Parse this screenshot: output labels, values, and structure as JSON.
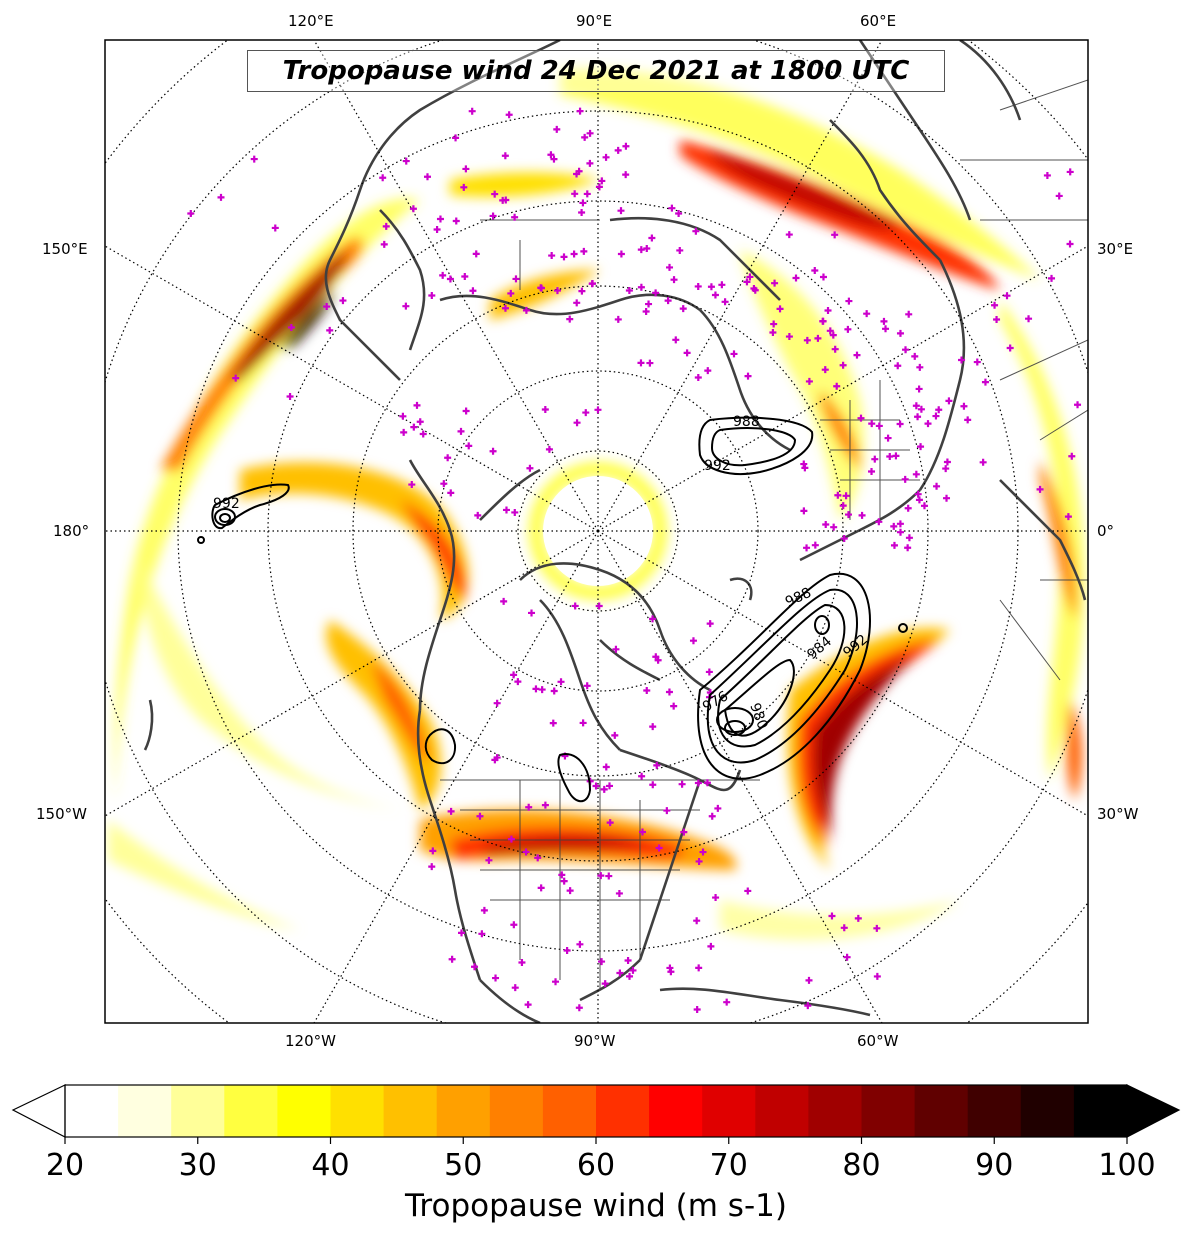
{
  "title": "Tropopause wind 24 Dec 2021 at 1800 UTC",
  "colorbar": {
    "label": "Tropopause wind (m s-1)",
    "ticks": [
      "20",
      "30",
      "40",
      "50",
      "60",
      "70",
      "80",
      "90",
      "100"
    ],
    "min": 20,
    "max": 100,
    "extend": "both",
    "colormap": "hot_r",
    "colors": [
      "#ffffff",
      "#ffffe0",
      "#ffff99",
      "#ffff40",
      "#ffff00",
      "#ffe000",
      "#ffc000",
      "#ffa000",
      "#ff8000",
      "#ff6000",
      "#ff3000",
      "#ff0000",
      "#e00000",
      "#c00000",
      "#a00000",
      "#800000",
      "#600000",
      "#400000",
      "#200000",
      "#000000"
    ]
  },
  "longitude_labels": {
    "top": [
      "120°E",
      "90°E",
      "60°E"
    ],
    "left": [
      "150°E",
      "180°",
      "150°W"
    ],
    "right": [
      "30°E",
      "0°",
      "30°W"
    ],
    "bottom": [
      "120°W",
      "90°W",
      "60°W"
    ]
  },
  "pressure_contours": {
    "atlantic": [
      "988",
      "984",
      "992",
      "980",
      "976"
    ],
    "europe": [
      "988",
      "992"
    ],
    "pacific": [
      "992"
    ]
  },
  "map": {
    "projection": "north polar stereographic",
    "observation_marker": "+",
    "observation_marker_color": "#cc00cc",
    "coastline_color": "#404040",
    "graticule": "dotted"
  }
}
